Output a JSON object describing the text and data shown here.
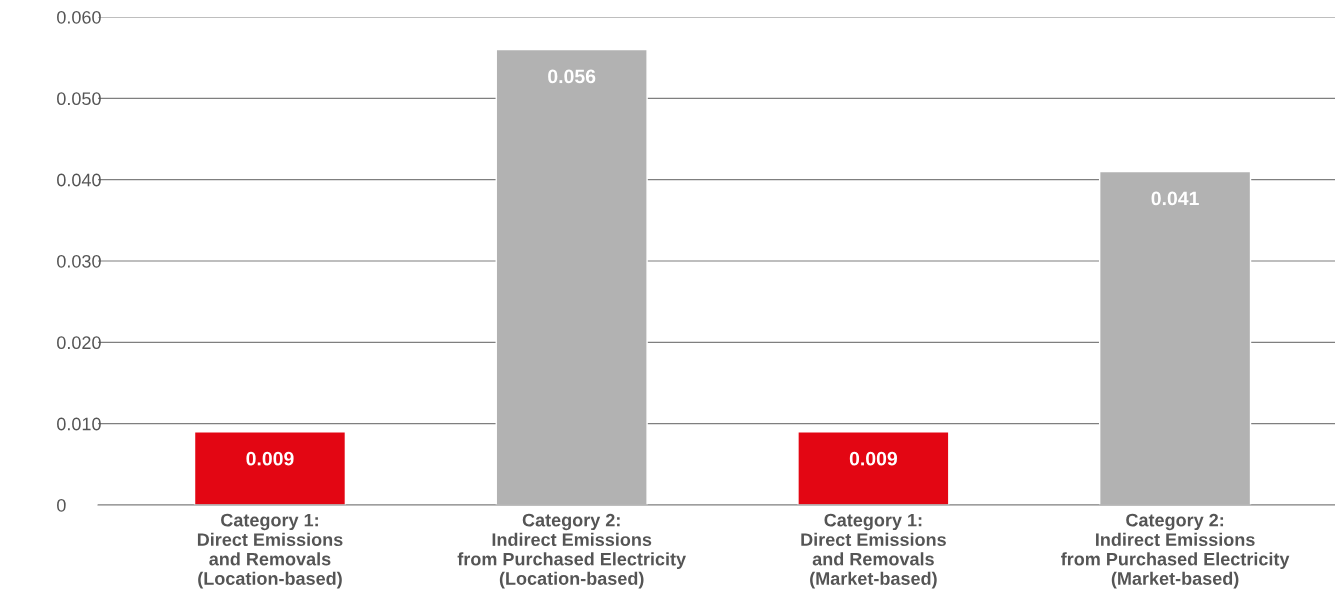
{
  "chart_data": {
    "type": "bar",
    "categories": [
      "Category 1:\nDirect Emissions\nand Removals\n(Location-based)",
      "Category 2:\nIndirect Emissions\nfrom Purchased Electricity\n(Location-based)",
      "Category 1:\nDirect Emissions\nand Removals\n(Market-based)",
      "Category 2:\nIndirect Emissions\nfrom Purchased Electricity\n(Market-based)"
    ],
    "values": [
      0.009,
      0.056,
      0.009,
      0.041
    ],
    "colors": [
      "#e30613",
      "#b2b2b2",
      "#e30613",
      "#b2b2b2"
    ],
    "ylim": [
      0,
      0.06
    ],
    "yticks": [
      {
        "value": 0,
        "label": "0"
      },
      {
        "value": 0.01,
        "label": "0.010"
      },
      {
        "value": 0.02,
        "label": "0.020"
      },
      {
        "value": 0.03,
        "label": "0.030"
      },
      {
        "value": 0.04,
        "label": "0.040"
      },
      {
        "value": 0.05,
        "label": "0.050"
      },
      {
        "value": 0.06,
        "label": "0.060"
      }
    ],
    "grid": "y",
    "data_labels": true
  }
}
